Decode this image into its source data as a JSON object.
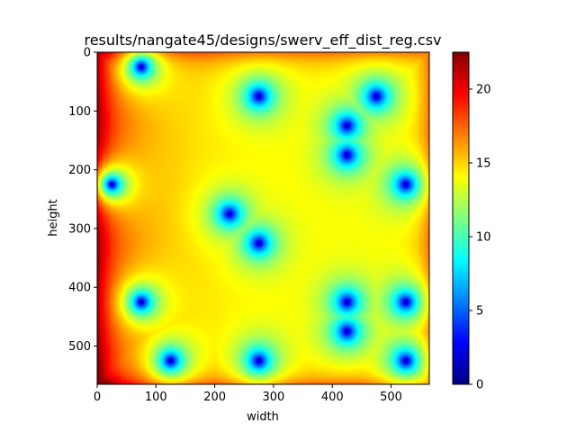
{
  "chart_data": {
    "type": "heatmap",
    "title": "results/nangate45/designs/swerv_eff_dist_reg.csv",
    "xlabel": "width",
    "ylabel": "height",
    "xlim": [
      0,
      565
    ],
    "ylim": [
      565,
      0
    ],
    "y_axis_inverted": true,
    "x_ticks": [
      0,
      100,
      200,
      300,
      400,
      500
    ],
    "y_ticks": [
      0,
      100,
      200,
      300,
      400,
      500
    ],
    "colormap": "jet",
    "colorbar": {
      "range": [
        0,
        22.5
      ],
      "ticks": [
        0,
        5,
        10,
        15,
        20
      ]
    },
    "background_level": 14,
    "left_edge_level": 19,
    "hotspots": [
      {
        "x": 75,
        "y": 25
      },
      {
        "x": 275,
        "y": 75
      },
      {
        "x": 475,
        "y": 75
      },
      {
        "x": 425,
        "y": 125
      },
      {
        "x": 425,
        "y": 175
      },
      {
        "x": 25,
        "y": 225
      },
      {
        "x": 525,
        "y": 225
      },
      {
        "x": 225,
        "y": 275
      },
      {
        "x": 275,
        "y": 325
      },
      {
        "x": 75,
        "y": 425
      },
      {
        "x": 425,
        "y": 425
      },
      {
        "x": 525,
        "y": 425
      },
      {
        "x": 425,
        "y": 475
      },
      {
        "x": 125,
        "y": 525
      },
      {
        "x": 275,
        "y": 525
      },
      {
        "x": 525,
        "y": 525
      }
    ]
  }
}
